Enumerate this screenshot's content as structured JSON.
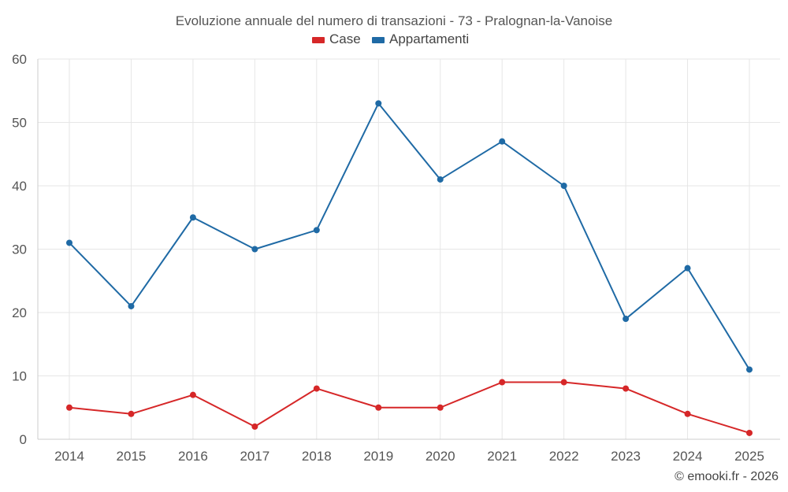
{
  "chart_data": {
    "type": "line",
    "title": "Evoluzione annuale del numero di transazioni - 73 - Pralognan-la-Vanoise",
    "categories": [
      "2014",
      "2015",
      "2016",
      "2017",
      "2018",
      "2019",
      "2020",
      "2021",
      "2022",
      "2023",
      "2024",
      "2025"
    ],
    "series": [
      {
        "name": "Case",
        "color": "#d62728",
        "values": [
          5,
          4,
          7,
          2,
          8,
          5,
          5,
          9,
          9,
          8,
          4,
          1
        ]
      },
      {
        "name": "Appartamenti",
        "color": "#1f6aa5",
        "values": [
          31,
          21,
          35,
          30,
          33,
          53,
          41,
          47,
          40,
          19,
          27,
          11
        ]
      }
    ],
    "xlabel": "",
    "ylabel": "",
    "ylim": [
      0,
      60
    ],
    "yticks": [
      0,
      10,
      20,
      30,
      40,
      50,
      60
    ],
    "grid": true,
    "legend": "top-center"
  },
  "credit": "© emooki.fr - 2026"
}
